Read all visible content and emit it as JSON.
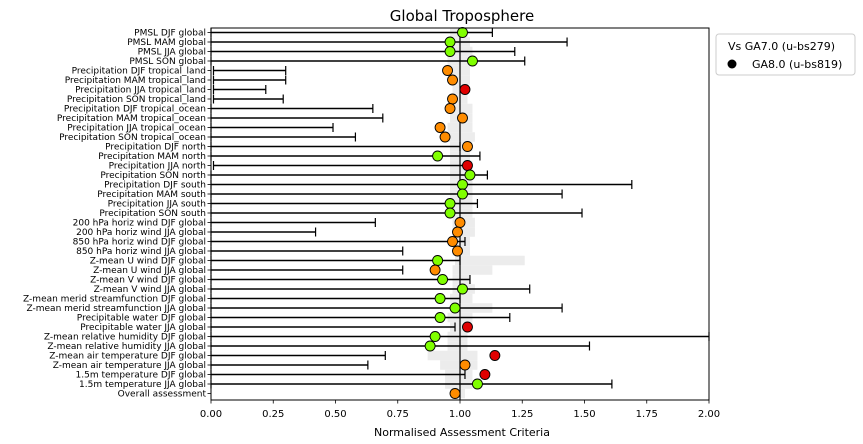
{
  "chart_data": {
    "type": "scatter",
    "title": "Global Troposphere",
    "xlabel": "Normalised Assessment Criteria",
    "ylabel": "",
    "xlim": [
      0,
      2.0
    ],
    "xticks": [
      "0.00",
      "0.25",
      "0.50",
      "0.75",
      "1.00",
      "1.25",
      "1.50",
      "1.75",
      "2.00"
    ],
    "legend": {
      "title": "Vs GA7.0 (u-bs279)",
      "entry": "GA8.0 (u-bs819)",
      "placement": "outside-top-right"
    },
    "reference_line": 1.0,
    "colors": {
      "green": "#80ff00",
      "orange": "#ff8c00",
      "red": "#e00000",
      "shade": "#ececec",
      "errorbar": "#000000"
    },
    "categories": [
      "PMSL DJF global",
      "PMSL MAM global",
      "PMSL JJA global",
      "PMSL SON global",
      "Precipitation DJF tropical_land",
      "Precipitation MAM tropical_land",
      "Precipitation JJA tropical_land",
      "Precipitation SON tropical_land",
      "Precipitation DJF tropical_ocean",
      "Precipitation MAM tropical_ocean",
      "Precipitation JJA tropical_ocean",
      "Precipitation SON tropical_ocean",
      "Precipitation DJF north",
      "Precipitation MAM north",
      "Precipitation JJA north",
      "Precipitation SON north",
      "Precipitation DJF south",
      "Precipitation MAM south",
      "Precipitation JJA south",
      "Precipitation SON south",
      "200 hPa horiz wind DJF global",
      "200 hPa horiz wind JJA global",
      "850 hPa horiz wind DJF global",
      "850 hPa horiz wind JJA global",
      "Z-mean U wind DJF global",
      "Z-mean U wind JJA global",
      "Z-mean V wind DJF global",
      "Z-mean V wind JJA global",
      "Z-mean merid streamfunction DJF global",
      "Z-mean merid streamfunction JJA global",
      "Precipitable water DJF global",
      "Precipitable water JJA global",
      "Z-mean relative humidity DJF global",
      "Z-mean relative humidity JJA global",
      "Z-mean air temperature DJF global",
      "Z-mean air temperature JJA global",
      "1.5m temperature DJF global",
      "1.5m temperature JJA global",
      "Overall assessment"
    ],
    "values": [
      1.01,
      0.96,
      0.96,
      1.05,
      0.95,
      0.97,
      1.02,
      0.97,
      0.96,
      1.01,
      0.92,
      0.94,
      1.03,
      0.91,
      1.03,
      1.04,
      1.01,
      1.01,
      0.96,
      0.96,
      1.0,
      0.99,
      0.97,
      0.99,
      0.91,
      0.9,
      0.93,
      1.01,
      0.92,
      0.98,
      0.92,
      1.03,
      0.9,
      0.88,
      1.14,
      1.02,
      1.1,
      1.07,
      0.98
    ],
    "point_colors": [
      "green",
      "green",
      "green",
      "green",
      "orange",
      "orange",
      "red",
      "orange",
      "orange",
      "orange",
      "orange",
      "orange",
      "orange",
      "green",
      "red",
      "green",
      "green",
      "green",
      "green",
      "green",
      "orange",
      "orange",
      "orange",
      "orange",
      "green",
      "orange",
      "green",
      "green",
      "green",
      "green",
      "green",
      "red",
      "green",
      "green",
      "red",
      "orange",
      "red",
      "green",
      "orange"
    ],
    "error_low": [
      0,
      0,
      0,
      0,
      0.01,
      0.01,
      0.01,
      0.01,
      0,
      0,
      0,
      0,
      0,
      0,
      0.01,
      0,
      0,
      0,
      0,
      0,
      0,
      0,
      0,
      0,
      0,
      0,
      0,
      0,
      0,
      0,
      0,
      0,
      0,
      0,
      0,
      0,
      0,
      0,
      null
    ],
    "error_high": [
      1.13,
      1.43,
      1.22,
      1.26,
      0.3,
      0.3,
      0.22,
      0.29,
      0.65,
      0.69,
      0.49,
      0.58,
      1.0,
      1.08,
      1.02,
      1.11,
      1.69,
      1.41,
      1.07,
      1.49,
      0.66,
      0.42,
      1.02,
      0.77,
      1.0,
      0.77,
      1.04,
      1.28,
      1.0,
      1.41,
      1.2,
      0.98,
      2.0,
      1.52,
      0.7,
      0.63,
      1.02,
      1.61,
      null
    ],
    "shade_low": [
      0.96,
      0.96,
      0.96,
      0.95,
      0.96,
      0.96,
      0.97,
      0.96,
      0.96,
      0.96,
      0.95,
      0.95,
      0.96,
      0.96,
      0.96,
      0.96,
      0.96,
      0.96,
      0.96,
      0.96,
      0.97,
      0.97,
      0.97,
      0.97,
      0.98,
      0.97,
      0.97,
      0.97,
      0.96,
      0.97,
      0.95,
      0.96,
      0.95,
      0.95,
      0.87,
      0.92,
      0.94,
      0.94,
      0.96
    ],
    "shade_high": [
      1.03,
      1.04,
      1.05,
      1.04,
      1.04,
      1.04,
      1.02,
      1.03,
      1.05,
      1.05,
      1.05,
      1.06,
      1.05,
      1.04,
      1.05,
      1.05,
      1.05,
      1.05,
      1.05,
      1.05,
      1.06,
      1.06,
      1.04,
      1.04,
      1.26,
      1.13,
      1.04,
      1.06,
      1.05,
      1.13,
      1.05,
      1.05,
      1.03,
      1.03,
      1.07,
      1.07,
      1.05,
      1.05,
      1.02
    ]
  }
}
